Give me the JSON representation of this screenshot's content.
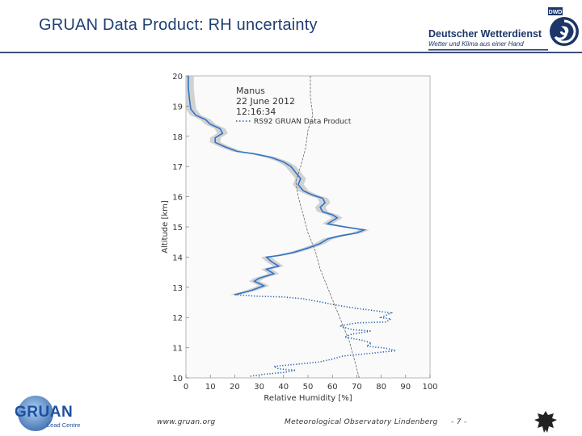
{
  "slide": {
    "title": "GRUAN Data Product: RH uncertainty"
  },
  "dwd": {
    "name": "Deutscher Wetterdienst",
    "tagline": "Wetter und Klima aus einer Hand",
    "badge": "DWD"
  },
  "footer": {
    "website": "www.gruan.org",
    "observatory": "Meteorological Observatory Lindenberg",
    "page": "- 7 -",
    "gruan_word": "GRUAN",
    "gruan_sub": "Lead Centre"
  },
  "chart_data": {
    "type": "line",
    "xlabel": "Relative Humidity [%]",
    "ylabel": "Altitude [km]",
    "xlim": [
      0,
      100
    ],
    "ylim": [
      10,
      20
    ],
    "xticks": [
      0,
      10,
      20,
      30,
      40,
      50,
      60,
      70,
      80,
      90,
      100
    ],
    "yticks": [
      10,
      11,
      12,
      13,
      14,
      15,
      16,
      17,
      18,
      19,
      20
    ],
    "annotations": [
      "Manus",
      "22 June 2012",
      "12:16:34"
    ],
    "legend_position": "top-right",
    "colors": {
      "profile": "#2f74c9",
      "uncertainty": "#c9c9c9",
      "dotted": "#1f5fb0",
      "reference": "#555555"
    },
    "series": [
      {
        "name": "RS92 GRUAN Data Product",
        "style": "solid-with-uncertainty-band",
        "uncertainty": 2.2,
        "points": [
          [
            1,
            20.0
          ],
          [
            1,
            19.6
          ],
          [
            1.5,
            19.2
          ],
          [
            2,
            18.9
          ],
          [
            4,
            18.7
          ],
          [
            8,
            18.55
          ],
          [
            10,
            18.4
          ],
          [
            14,
            18.25
          ],
          [
            15,
            18.1
          ],
          [
            12,
            17.95
          ],
          [
            12,
            17.8
          ],
          [
            16,
            17.65
          ],
          [
            21,
            17.5
          ],
          [
            28,
            17.42
          ],
          [
            35,
            17.3
          ],
          [
            40,
            17.15
          ],
          [
            43,
            17.0
          ],
          [
            45,
            16.8
          ],
          [
            47,
            16.6
          ],
          [
            46,
            16.4
          ],
          [
            48,
            16.2
          ],
          [
            52,
            16.05
          ],
          [
            56,
            15.95
          ],
          [
            57,
            15.8
          ],
          [
            55,
            15.65
          ],
          [
            56,
            15.5
          ],
          [
            60,
            15.4
          ],
          [
            62,
            15.3
          ],
          [
            60,
            15.2
          ],
          [
            58,
            15.1
          ],
          [
            65,
            15.0
          ],
          [
            73,
            14.9
          ],
          [
            70,
            14.8
          ],
          [
            63,
            14.7
          ],
          [
            58,
            14.6
          ],
          [
            55,
            14.45
          ],
          [
            50,
            14.3
          ],
          [
            44,
            14.15
          ],
          [
            38,
            14.05
          ],
          [
            33,
            14.0
          ],
          [
            35,
            13.85
          ],
          [
            38,
            13.7
          ],
          [
            33,
            13.6
          ],
          [
            36,
            13.45
          ],
          [
            30,
            13.3
          ],
          [
            28,
            13.2
          ],
          [
            32,
            13.05
          ],
          [
            27,
            12.9
          ],
          [
            20,
            12.75
          ]
        ]
      },
      {
        "name": "dotted",
        "style": "dotted",
        "points": [
          [
            20,
            12.75
          ],
          [
            30,
            12.7
          ],
          [
            40,
            12.68
          ],
          [
            48,
            12.62
          ],
          [
            56,
            12.5
          ],
          [
            62,
            12.4
          ],
          [
            70,
            12.3
          ],
          [
            78,
            12.22
          ],
          [
            84,
            12.15
          ],
          [
            80,
            12.0
          ],
          [
            84,
            11.95
          ],
          [
            82,
            11.85
          ],
          [
            70,
            11.82
          ],
          [
            63,
            11.72
          ],
          [
            68,
            11.6
          ],
          [
            76,
            11.55
          ],
          [
            68,
            11.45
          ],
          [
            65,
            11.35
          ],
          [
            72,
            11.25
          ],
          [
            76,
            11.15
          ],
          [
            74,
            11.05
          ],
          [
            82,
            10.98
          ],
          [
            86,
            10.9
          ],
          [
            74,
            10.8
          ],
          [
            64,
            10.72
          ],
          [
            60,
            10.62
          ],
          [
            54,
            10.52
          ],
          [
            45,
            10.45
          ],
          [
            36,
            10.38
          ],
          [
            38,
            10.3
          ],
          [
            45,
            10.25
          ],
          [
            40,
            10.18
          ],
          [
            32,
            10.12
          ],
          [
            26,
            10.05
          ]
        ]
      },
      {
        "name": "reference",
        "style": "thin-dashed",
        "points": [
          [
            51,
            20.0
          ],
          [
            51,
            19.3
          ],
          [
            52,
            18.7
          ],
          [
            50,
            18.2
          ],
          [
            49,
            17.6
          ],
          [
            47,
            17.0
          ],
          [
            45,
            16.5
          ],
          [
            46,
            16.0
          ],
          [
            48,
            15.4
          ],
          [
            50,
            14.8
          ],
          [
            53,
            14.2
          ],
          [
            55,
            13.6
          ],
          [
            58,
            13.0
          ],
          [
            61,
            12.4
          ],
          [
            64,
            11.8
          ],
          [
            67,
            11.2
          ],
          [
            69,
            10.6
          ],
          [
            71,
            10.0
          ]
        ]
      }
    ]
  }
}
